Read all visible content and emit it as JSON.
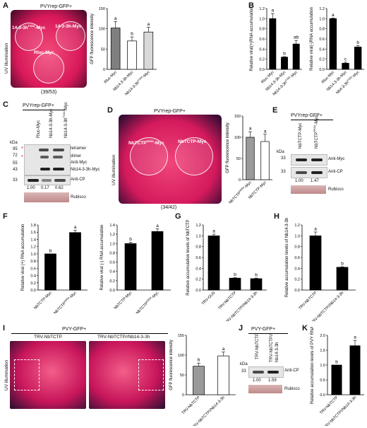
{
  "panels": {
    "A": "A",
    "B": "B",
    "C": "C",
    "D": "D",
    "E": "E",
    "F": "F",
    "G": "G",
    "H": "H",
    "I": "I",
    "J": "J",
    "K": "K"
  },
  "A": {
    "title": "PVYrep-GFP+",
    "side": "UV illumination",
    "label_left": "14-3-3h",
    "label_left_sup": "F16A",
    "label_left_suffix": "-Myc",
    "label_right": "14-3-3h-Myc",
    "label_bottom": "Rluc-Myc",
    "ratio": "(39/53)"
  },
  "C": {
    "title": "PVYrep-GFP+",
    "lanes": [
      "Rluc-Myc",
      "Nb14-3-3h-Myc",
      "Nb14-3-3h",
      "F16A",
      "-Myc"
    ],
    "kda": "kDa",
    "mw": [
      "95",
      "72",
      "55",
      "43",
      "33"
    ],
    "tetramer": "tetramer",
    "dimer": "dimer",
    "anti_myc": "Anti-Myc",
    "nb_myc": "Nb14-3-3h-Myc",
    "anti_cp": "Anti-CP",
    "quant": [
      "1.00",
      "0.17",
      "0.62"
    ],
    "rubisco": "Rubisco"
  },
  "D": {
    "title": "PVYrep-GFP+",
    "side": "UV illumination",
    "left": "NbTCTP",
    "left_sup": "R65A",
    "left_suffix": "-Myc",
    "right": "NbTCTP-Myc",
    "ratio": "(34/42)"
  },
  "E": {
    "title": "PVYrep-GFP+",
    "lane1": "NbTCTP-Myc",
    "lane2": "NbTCTP",
    "lane2_sup": "R65A",
    "lane2_suffix": "-Myc",
    "kda": "kDa",
    "mw": [
      "33",
      "33"
    ],
    "anti_myc": "Anti-Myc",
    "anti_cp": "Anti-CP",
    "quant": [
      "1.00",
      "1.47"
    ],
    "rubisco": "Rubisco"
  },
  "I": {
    "title": "PVY-GFP+",
    "side": "UV illumination",
    "left": "TRV-NbTCTP",
    "right": "TRV-NbTCTP//Nb14-3-3h"
  },
  "J": {
    "title": "PVY-GFP+",
    "lanes": [
      "TRV-NbTCTP",
      "TRV-NbTCTP//",
      "Nb14-3-3h"
    ],
    "kda": "kDa",
    "mw": "33",
    "anti_cp": "Anti-CP",
    "quant": [
      "1.00",
      "1.59"
    ],
    "rubisco": "Rubisco"
  },
  "chart_data": [
    {
      "id": "A-bar",
      "type": "bar",
      "ylabel": "GFP fluorescence intensity",
      "ylim": [
        0,
        150
      ],
      "yticks": [
        "0",
        "50",
        "100",
        "150"
      ],
      "categories": [
        "Rluc-Myc",
        "Nb14-3-3h-Myc",
        "Nb14-3-3h^F16A-Myc"
      ],
      "values": [
        102,
        70,
        92
      ],
      "errors": [
        16,
        10,
        12
      ],
      "letters": [
        "a",
        "b",
        "a"
      ],
      "colors": [
        "#7f7f7f",
        "#ffffff",
        "#d9d9d9"
      ]
    },
    {
      "id": "B-left",
      "type": "bar",
      "ylabel": "Relative viral(+)RNA accumulation",
      "ylim": [
        0,
        1.2
      ],
      "yticks": [
        "0.0",
        "0.2",
        "0.4",
        "0.6",
        "0.8",
        "1.0",
        "1.2"
      ],
      "categories": [
        "Rluc-Myc",
        "Nb14-3-3h-Myc",
        "Nb14-3-3h^F16A-Myc"
      ],
      "values": [
        1.0,
        0.24,
        0.5
      ],
      "errors": [
        0.1,
        0.01,
        0.07
      ],
      "letters": [
        "a",
        "b",
        "ab"
      ]
    },
    {
      "id": "B-right",
      "type": "bar",
      "ylabel": "Relative viral(-)RNA accumulation",
      "ylim": [
        0,
        1.2
      ],
      "yticks": [
        "0.0",
        "0.2",
        "0.4",
        "0.6",
        "0.8",
        "1.0",
        "1.2"
      ],
      "categories": [
        "Rluc-Myc",
        "Nb14-3-3h-Myc",
        "Nb4-3-3h^F16A-Myc"
      ],
      "values": [
        1.0,
        0.12,
        0.44
      ],
      "errors": [
        0.01,
        0.02,
        0.03
      ],
      "letters": [
        "a",
        "c",
        "b"
      ]
    },
    {
      "id": "D-bar",
      "type": "bar",
      "ylabel": "GFP fluorescence intensity",
      "ylim": [
        0,
        150
      ],
      "yticks": [
        "0",
        "50",
        "100",
        "150"
      ],
      "categories": [
        "NbTCTP^R65A-Myc",
        "NbTCTP-Myc"
      ],
      "values": [
        100,
        90
      ],
      "errors": [
        13,
        17
      ],
      "letters": [
        "a",
        "a"
      ],
      "colors": [
        "#9a9a9a",
        "#ffffff"
      ]
    },
    {
      "id": "F-left",
      "type": "bar",
      "ylabel": "Relative viral (+) RNA accumulation",
      "ylim": [
        0,
        1.8
      ],
      "yticks": [
        "0.0",
        "0.2",
        "0.4",
        "0.6",
        "0.8",
        "1.0",
        "1.2",
        "1.4",
        "1.6",
        "1.8"
      ],
      "categories": [
        "NbTCTP-Myc",
        "NbTCTP^R65A-Myc"
      ],
      "values": [
        1.0,
        1.59
      ],
      "errors": [
        0.0,
        0.06
      ],
      "letters": [
        "b",
        "a"
      ]
    },
    {
      "id": "F-right",
      "type": "bar",
      "ylabel": "Relative viral (-) RNA accumulation",
      "ylim": [
        0,
        1.4
      ],
      "yticks": [
        "0.0",
        "0.2",
        "0.4",
        "0.6",
        "0.8",
        "1.0",
        "1.2",
        "1.4"
      ],
      "categories": [
        "NbTCTP-Myc",
        "NbTCTP^R65A-Myc"
      ],
      "values": [
        1.0,
        1.26
      ],
      "errors": [
        0.03,
        0.06
      ],
      "letters": [
        "b",
        "a"
      ]
    },
    {
      "id": "G",
      "type": "bar",
      "ylabel": "Relative accumulation levels of NbTCTP",
      "ylim": [
        0,
        1.2
      ],
      "yticks": [
        "0.0",
        "0.2",
        "0.4",
        "0.6",
        "0.8",
        "1.0",
        "1.2"
      ],
      "categories": [
        "TRV-GUS",
        "TRV-NbTCTP",
        "TRV-NbTCTP//Nb14-3-3h"
      ],
      "values": [
        1.0,
        0.22,
        0.21
      ],
      "errors": [
        0.03,
        0.01,
        0.01
      ],
      "letters": [
        "a",
        "b",
        "b"
      ]
    },
    {
      "id": "H",
      "type": "bar",
      "ylabel": "Relative accumulation levels of Nb14-3-3h",
      "ylim": [
        0,
        1.2
      ],
      "yticks": [
        "0.0",
        "0.2",
        "0.4",
        "0.6",
        "0.8",
        "1.0",
        "1.2"
      ],
      "categories": [
        "TRV-NbTCTP",
        "TRV-NbTCTP//Nb14-3-3h"
      ],
      "values": [
        1.0,
        0.42
      ],
      "errors": [
        0.07,
        0.01
      ],
      "letters": [
        "a",
        "b"
      ]
    },
    {
      "id": "I-bar",
      "type": "bar",
      "ylabel": "GFP fluorescence intensity",
      "ylim": [
        0,
        150
      ],
      "yticks": [
        "0",
        "50",
        "100",
        "150"
      ],
      "categories": [
        "TRV-NbTCTP",
        "TRV-NbTCTP//Nb14-3-3h"
      ],
      "values": [
        72,
        98
      ],
      "errors": [
        8,
        10
      ],
      "letters": [
        "b",
        "a"
      ],
      "colors": [
        "#9a9a9a",
        "#ffffff"
      ]
    },
    {
      "id": "K",
      "type": "bar",
      "ylabel": "Relative accumulation levels of PVY RNA",
      "ylim": [
        0,
        2.0
      ],
      "yticks": [
        "0.0",
        "0.5",
        "1.0",
        "1.5",
        "2.0"
      ],
      "categories": [
        "TRV-NbTCTP",
        "TRV-NbTCTP//Nb14-3-3h"
      ],
      "values": [
        1.0,
        1.65
      ],
      "errors": [
        0.0,
        0.18
      ],
      "letters": [
        "b",
        "a"
      ]
    }
  ]
}
